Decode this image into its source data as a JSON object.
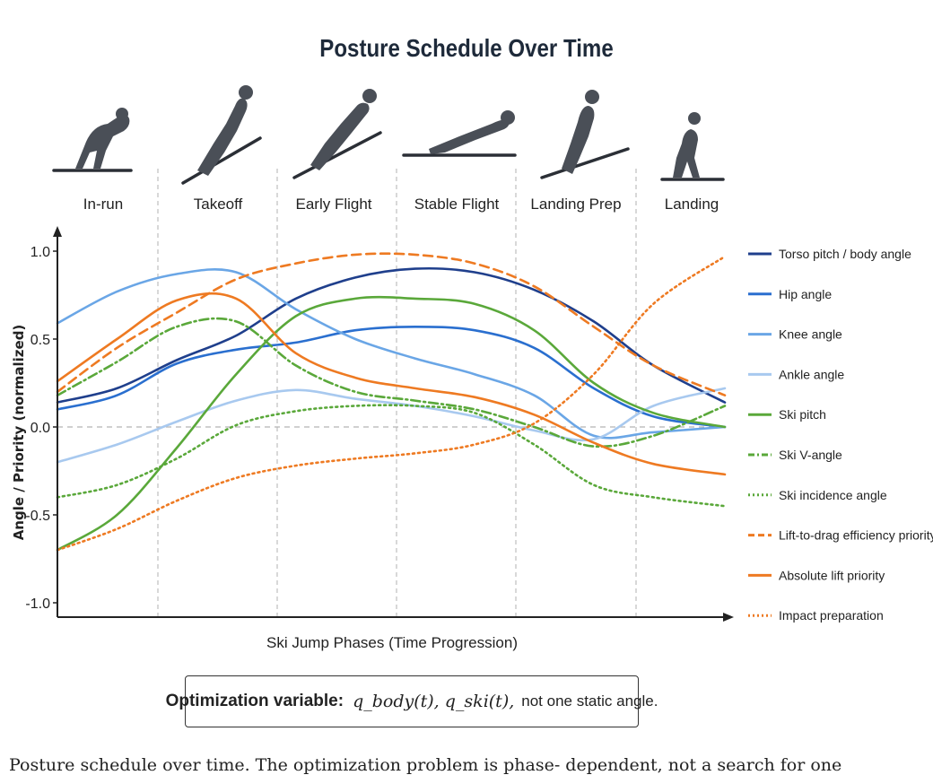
{
  "title": "Posture Schedule Over Time",
  "optimization_box": {
    "lead": "Optimization variable:",
    "math": "q_body(t), q_ski(t),",
    "tail": "not one static angle."
  },
  "caption": "Posture schedule over time. The optimization problem is phase- dependent, not a search for one",
  "skier_icons": [
    "in-run-skier-icon",
    "takeoff-skier-icon",
    "early-flight-skier-icon",
    "stable-flight-skier-icon",
    "landing-prep-skier-icon",
    "landing-skier-icon"
  ],
  "chart_data": {
    "type": "line",
    "title": "Posture Schedule Over Time",
    "xlabel": "Ski Jump Phases (Time Progression)",
    "ylabel": "Angle / Priority (normalized)",
    "ylim": [
      -1.0,
      1.0
    ],
    "yticks": [
      "1.0",
      "0.5",
      "0.0",
      "-0.5",
      "-1.0"
    ],
    "xlim": [
      0,
      5.6
    ],
    "phases": [
      "In-run",
      "Takeoff",
      "Early Flight",
      "Stable Flight",
      "Landing Prep",
      "Landing"
    ],
    "zero_line": true,
    "legend_position": "right",
    "series": [
      {
        "name": "Torso pitch / body angle",
        "color": "#1f3f8c",
        "style": "solid",
        "x": [
          0,
          0.5,
          1,
          1.5,
          2,
          2.5,
          3,
          3.5,
          4,
          4.5,
          5,
          5.6
        ],
        "y": [
          0.14,
          0.22,
          0.38,
          0.52,
          0.73,
          0.85,
          0.9,
          0.88,
          0.78,
          0.6,
          0.35,
          0.14
        ]
      },
      {
        "name": "Hip angle",
        "color": "#2a6fcf",
        "style": "solid",
        "x": [
          0,
          0.5,
          1,
          1.5,
          2,
          2.5,
          3,
          3.5,
          4,
          4.5,
          5,
          5.6
        ],
        "y": [
          0.1,
          0.18,
          0.36,
          0.44,
          0.48,
          0.55,
          0.57,
          0.55,
          0.45,
          0.22,
          0.06,
          0.0
        ]
      },
      {
        "name": "Knee angle",
        "color": "#6aa6e6",
        "style": "solid",
        "x": [
          0,
          0.5,
          1,
          1.5,
          2,
          2.5,
          3,
          3.5,
          4,
          4.5,
          5,
          5.6
        ],
        "y": [
          0.59,
          0.77,
          0.87,
          0.88,
          0.67,
          0.5,
          0.39,
          0.3,
          0.18,
          -0.05,
          -0.03,
          0.0
        ]
      },
      {
        "name": "Ankle angle",
        "color": "#a8c9ef",
        "style": "solid",
        "x": [
          0,
          0.5,
          1,
          1.5,
          2,
          2.5,
          3,
          3.5,
          4,
          4.5,
          5,
          5.6
        ],
        "y": [
          -0.2,
          -0.1,
          0.03,
          0.15,
          0.21,
          0.16,
          0.12,
          0.06,
          -0.02,
          -0.07,
          0.12,
          0.22
        ]
      },
      {
        "name": "Ski pitch",
        "color": "#5aa83a",
        "style": "solid",
        "x": [
          0,
          0.5,
          1,
          1.5,
          2,
          2.5,
          3,
          3.5,
          4,
          4.5,
          5,
          5.6
        ],
        "y": [
          -0.7,
          -0.5,
          -0.12,
          0.3,
          0.63,
          0.73,
          0.73,
          0.7,
          0.55,
          0.25,
          0.08,
          0.0
        ]
      },
      {
        "name": "Ski V-angle",
        "color": "#5aa83a",
        "style": "dashdot",
        "x": [
          0,
          0.5,
          1,
          1.5,
          2,
          2.5,
          3,
          3.5,
          4,
          4.5,
          5,
          5.6
        ],
        "y": [
          0.18,
          0.37,
          0.57,
          0.6,
          0.35,
          0.2,
          0.15,
          0.1,
          0.0,
          -0.11,
          -0.05,
          0.12
        ]
      },
      {
        "name": "Ski incidence angle",
        "color": "#5aa83a",
        "style": "dotted",
        "x": [
          0,
          0.5,
          1,
          1.5,
          2,
          2.5,
          3,
          3.5,
          4,
          4.5,
          5,
          5.6
        ],
        "y": [
          -0.4,
          -0.33,
          -0.18,
          0.01,
          0.09,
          0.12,
          0.12,
          0.08,
          -0.1,
          -0.33,
          -0.4,
          -0.45
        ]
      },
      {
        "name": "Lift-to-drag efficiency priority",
        "color": "#ee7a22",
        "style": "dashed",
        "x": [
          0,
          0.5,
          1,
          1.5,
          2,
          2.5,
          3,
          3.5,
          4,
          4.5,
          5,
          5.6
        ],
        "y": [
          0.2,
          0.45,
          0.65,
          0.84,
          0.93,
          0.98,
          0.98,
          0.93,
          0.8,
          0.57,
          0.35,
          0.18
        ]
      },
      {
        "name": "Absolute lift priority",
        "color": "#ee7a22",
        "style": "solid",
        "x": [
          0,
          0.5,
          1,
          1.5,
          2,
          2.5,
          3,
          3.5,
          4,
          4.5,
          5,
          5.6
        ],
        "y": [
          0.26,
          0.5,
          0.72,
          0.73,
          0.42,
          0.28,
          0.22,
          0.17,
          0.07,
          -0.09,
          -0.21,
          -0.27
        ]
      },
      {
        "name": "Impact preparation",
        "color": "#ee7a22",
        "style": "dotted",
        "x": [
          0,
          0.5,
          1,
          1.5,
          2,
          2.5,
          3,
          3.5,
          4,
          4.5,
          5,
          5.6
        ],
        "y": [
          -0.7,
          -0.58,
          -0.42,
          -0.29,
          -0.22,
          -0.18,
          -0.15,
          -0.1,
          0.02,
          0.3,
          0.7,
          0.97
        ]
      }
    ]
  }
}
